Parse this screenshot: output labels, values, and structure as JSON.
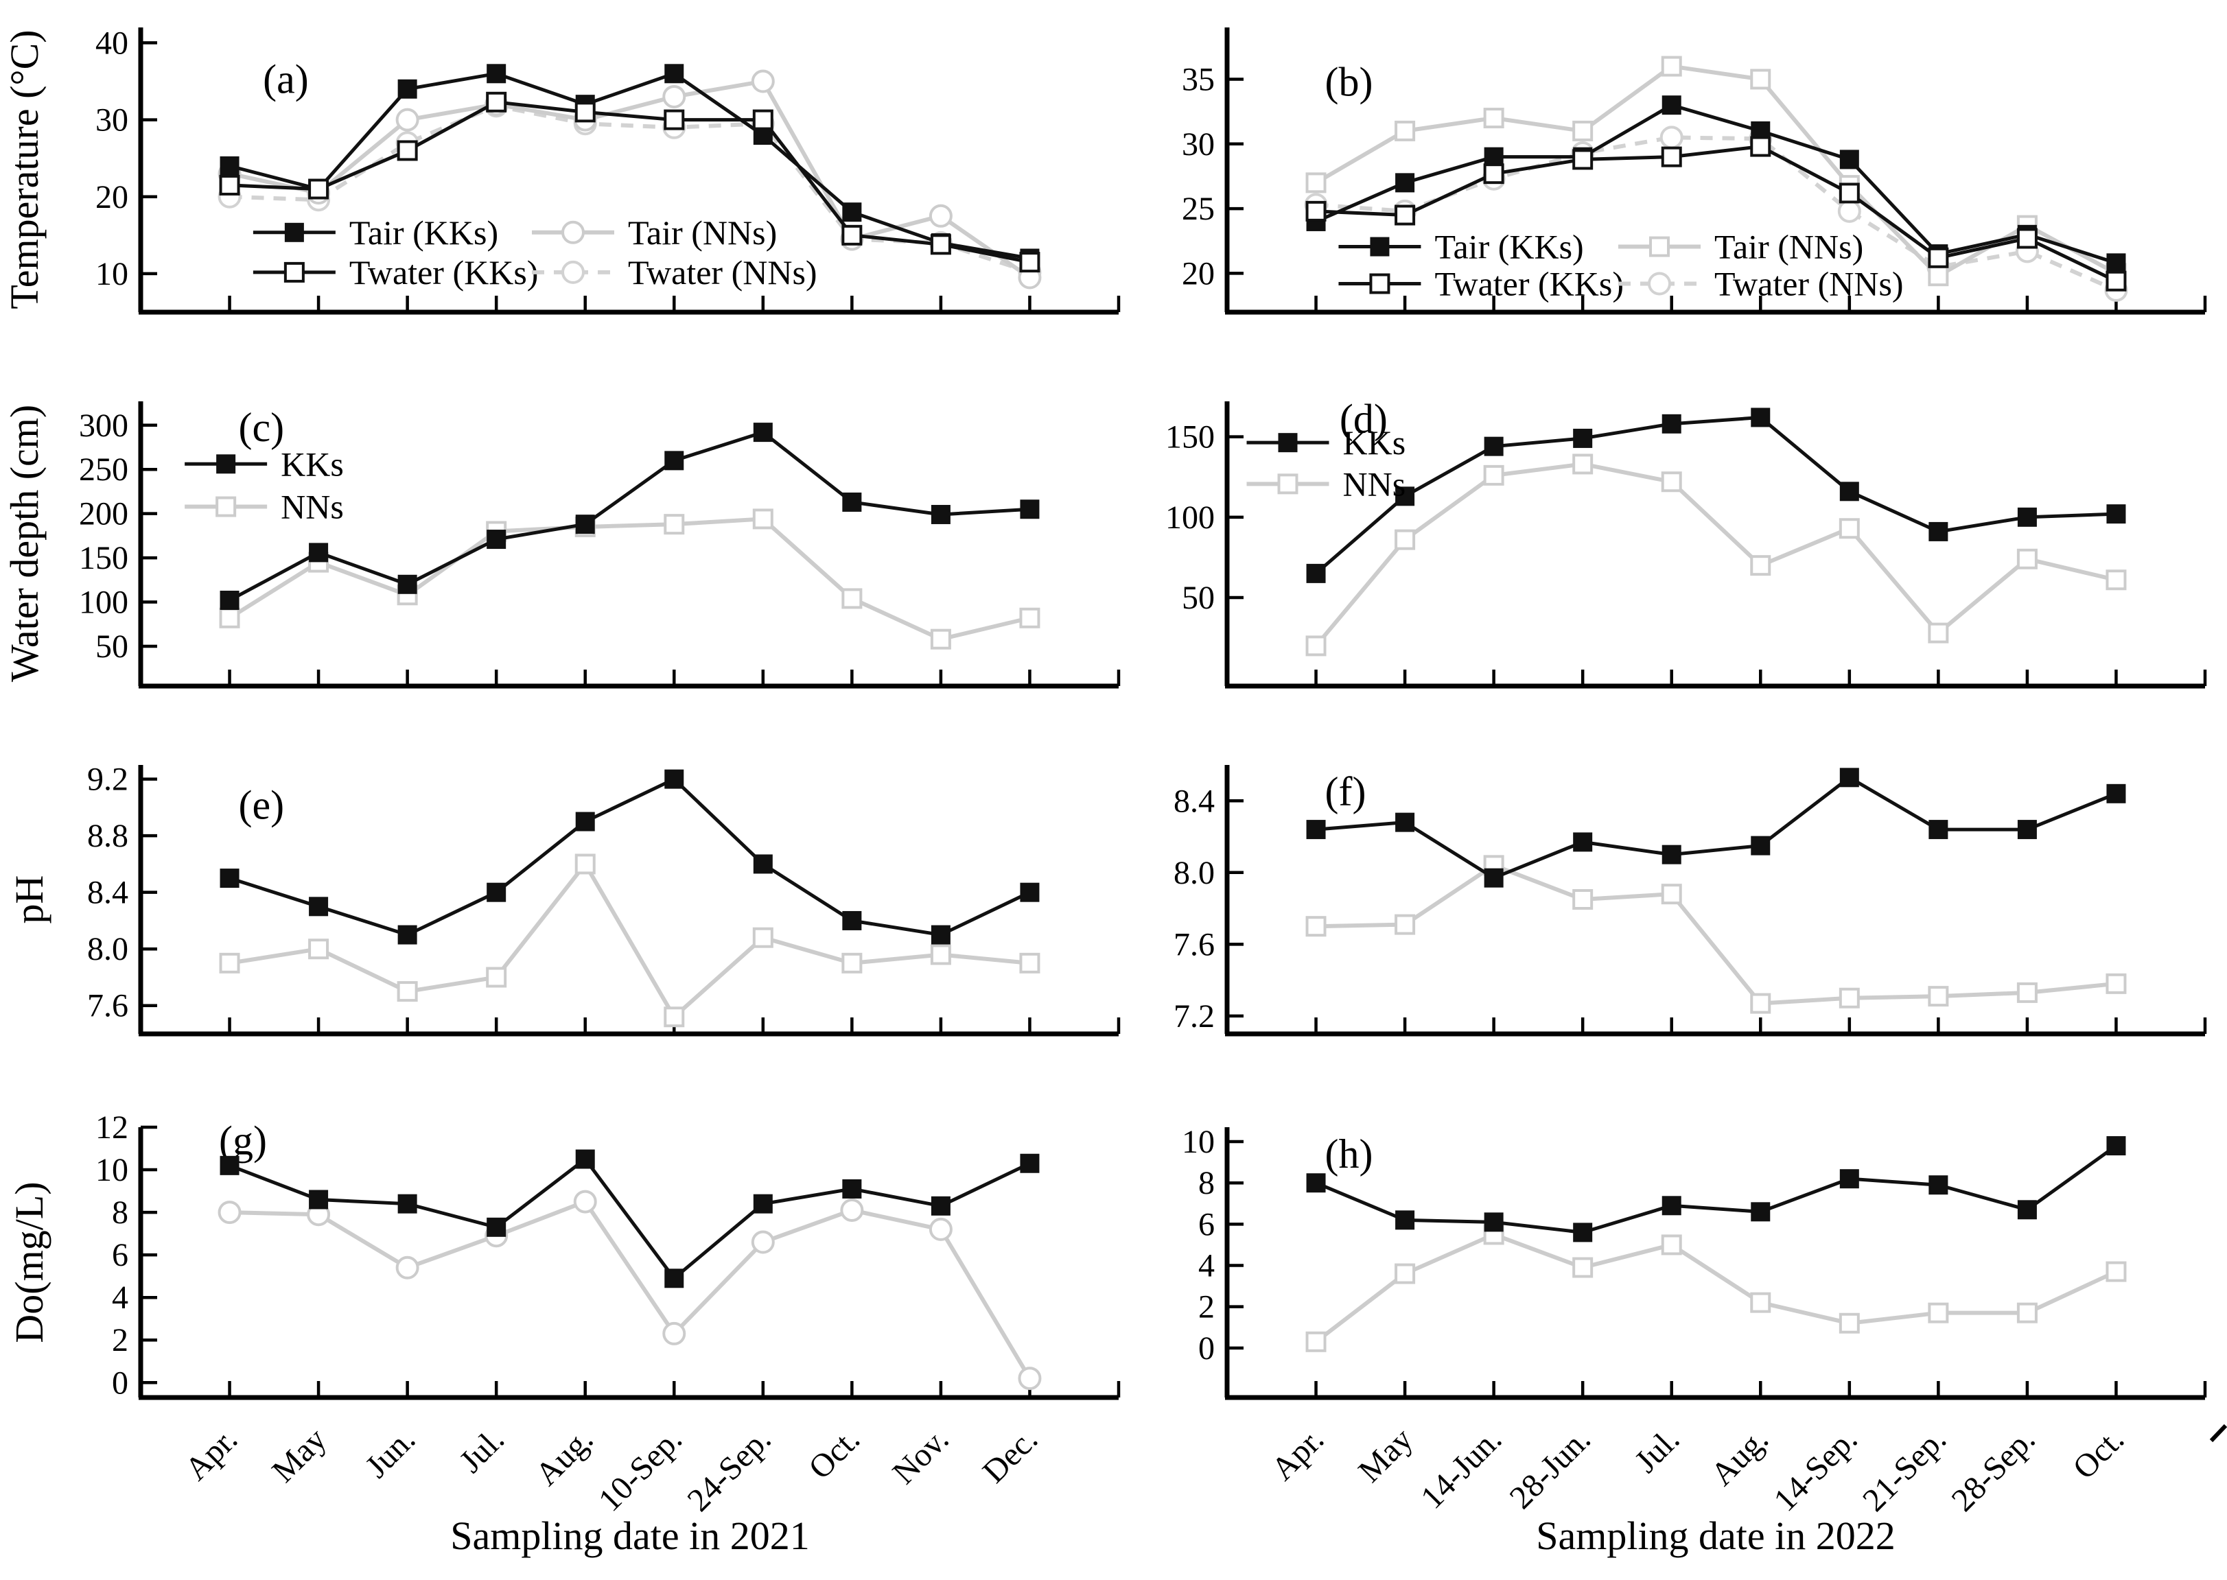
{
  "figure": {
    "description": "Eight-panel line figure comparing sites KKs and NNs",
    "accent_black": "#111111",
    "accent_gray": "#cccccc"
  },
  "chart_data": [
    {
      "id": "a",
      "type": "line",
      "row": 0,
      "col": 0,
      "panel_label": "(a)",
      "label_pos": [
        0.125,
        0.23
      ],
      "ylabel": "Temperature (°C)",
      "categories": [
        "Apr.",
        "May",
        "Jun.",
        "Jul.",
        "Aug.",
        "10-Sep.",
        "24-Sep.",
        "Oct.",
        "Nov.",
        "Dec."
      ],
      "yticks": [
        "10",
        "20",
        "30",
        "40"
      ],
      "ylim": [
        5,
        42
      ],
      "show_x_labels": false,
      "legend": {
        "layout": "grid",
        "x": 0.115,
        "y": 0.72,
        "col2x": 0.4,
        "row2y": 0.86
      },
      "series": [
        {
          "name": "Tair (KKs)",
          "color": "#111111",
          "line": "solid",
          "marker": "filled-square",
          "values": [
            24,
            21,
            34,
            36,
            32,
            36,
            28,
            18,
            14,
            12
          ]
        },
        {
          "name": "Tair (NNs)",
          "color": "#cccccc",
          "line": "solid",
          "marker": "open-circle",
          "values": [
            23,
            20.5,
            30,
            32,
            30,
            33,
            35,
            14.5,
            17.5,
            9.5
          ]
        },
        {
          "name": "Twater (KKs)",
          "color": "#111111",
          "line": "solid",
          "marker": "open-square",
          "values": [
            21.5,
            21,
            26,
            32.3,
            31,
            30,
            30,
            15,
            13.8,
            11.5
          ]
        },
        {
          "name": "Twater (NNs)",
          "color": "#d2d2d2",
          "line": "dashed",
          "marker": "open-circle",
          "values": [
            20,
            19.6,
            27,
            31.8,
            29.5,
            29,
            29.5,
            14.5,
            14,
            10.2
          ]
        }
      ]
    },
    {
      "id": "b",
      "type": "line",
      "row": 0,
      "col": 1,
      "panel_label": "(b)",
      "label_pos": [
        0.1,
        0.24
      ],
      "categories": [
        "Apr.",
        "May",
        "14-Jun.",
        "28-Jun.",
        "Jul.",
        "Aug.",
        "14-Sep.",
        "21-Sep.",
        "28-Sep.",
        "Oct."
      ],
      "yticks": [
        "20",
        "25",
        "30",
        "35"
      ],
      "ylim": [
        17,
        39
      ],
      "show_x_labels": false,
      "legend": {
        "layout": "grid",
        "x": 0.114,
        "y": 0.77,
        "col2x": 0.4,
        "row2y": 0.9
      },
      "series": [
        {
          "name": "Tair (KKs)",
          "color": "#111111",
          "line": "solid",
          "marker": "filled-square",
          "values": [
            24,
            27,
            29,
            29,
            33,
            31,
            28.8,
            21.5,
            23,
            20.8
          ]
        },
        {
          "name": "Tair (NNs)",
          "color": "#cccccc",
          "line": "solid",
          "marker": "open-square",
          "values": [
            27,
            31,
            32,
            31,
            36,
            35,
            26.8,
            19.8,
            23.7,
            20
          ]
        },
        {
          "name": "Twater (KKs)",
          "color": "#111111",
          "line": "solid",
          "marker": "open-square",
          "values": [
            24.8,
            24.5,
            27.7,
            28.8,
            29,
            29.8,
            26.2,
            21.2,
            22.7,
            19.4
          ]
        },
        {
          "name": "Twater (NNs)",
          "color": "#d2d2d2",
          "line": "dashed",
          "marker": "open-circle",
          "values": [
            25.3,
            24.8,
            27.3,
            29.3,
            30.5,
            30.4,
            24.8,
            20.5,
            21.7,
            18.7
          ]
        }
      ]
    },
    {
      "id": "c",
      "type": "line",
      "row": 1,
      "col": 0,
      "panel_label": "(c)",
      "label_pos": [
        0.1,
        0.14
      ],
      "ylabel": "Water depth (cm)",
      "categories": [
        "Apr.",
        "May",
        "Jun.",
        "Jul.",
        "Aug.",
        "10-Sep.",
        "24-Sep.",
        "Oct.",
        "Nov.",
        "Dec."
      ],
      "yticks": [
        "50",
        "100",
        "150",
        "200",
        "250",
        "300"
      ],
      "ylim": [
        5,
        327
      ],
      "show_x_labels": false,
      "legend": {
        "layout": "stacked",
        "x": 0.045,
        "y": 0.22,
        "row2y": 0.37
      },
      "series": [
        {
          "name": "KKs",
          "color": "#111111",
          "line": "solid",
          "marker": "filled-square",
          "values": [
            102,
            156,
            120,
            171,
            188,
            260,
            292,
            213,
            199,
            205
          ]
        },
        {
          "name": "NNs",
          "color": "#cccccc",
          "line": "solid",
          "marker": "open-square",
          "values": [
            82,
            145,
            108,
            180,
            185,
            188,
            194,
            104,
            58,
            82
          ]
        }
      ]
    },
    {
      "id": "d",
      "type": "line",
      "row": 1,
      "col": 1,
      "panel_label": "(d)",
      "label_pos": [
        0.115,
        0.11
      ],
      "categories": [
        "Apr.",
        "May",
        "14-Jun.",
        "28-Jun.",
        "Jul.",
        "Aug.",
        "14-Sep.",
        "21-Sep.",
        "28-Sep.",
        "Oct."
      ],
      "yticks": [
        "50",
        "100",
        "150"
      ],
      "ylim": [
        -5,
        172
      ],
      "show_x_labels": false,
      "legend": {
        "layout": "stacked",
        "x": 0.02,
        "y": 0.145,
        "row2y": 0.29
      },
      "series": [
        {
          "name": "KKs",
          "color": "#111111",
          "line": "solid",
          "marker": "filled-square",
          "values": [
            65,
            113,
            144,
            149,
            158,
            162,
            116,
            91,
            100,
            102
          ]
        },
        {
          "name": "NNs",
          "color": "#cccccc",
          "line": "solid",
          "marker": "open-square",
          "values": [
            20,
            86,
            126,
            133,
            122,
            70,
            93,
            28,
            74,
            61
          ]
        }
      ]
    },
    {
      "id": "e",
      "type": "line",
      "row": 2,
      "col": 0,
      "panel_label": "(e)",
      "label_pos": [
        0.1,
        0.2
      ],
      "ylabel": "pH",
      "categories": [
        "Apr.",
        "May",
        "Jun.",
        "Jul.",
        "Aug.",
        "10-Sep.",
        "24-Sep.",
        "Oct.",
        "Nov.",
        "Dec."
      ],
      "yticks": [
        "7.6",
        "8.0",
        "8.4",
        "8.8",
        "9.2"
      ],
      "ylim": [
        7.4,
        9.3
      ],
      "show_x_labels": false,
      "legend": null,
      "series": [
        {
          "name": "KKs",
          "color": "#111111",
          "line": "solid",
          "marker": "filled-square",
          "values": [
            8.5,
            8.3,
            8.1,
            8.4,
            8.9,
            9.2,
            8.6,
            8.2,
            8.1,
            8.4
          ]
        },
        {
          "name": "NNs",
          "color": "#cccccc",
          "line": "solid",
          "marker": "open-square",
          "values": [
            7.9,
            8.0,
            7.7,
            7.8,
            8.6,
            7.52,
            8.08,
            7.9,
            7.96,
            7.9
          ]
        }
      ]
    },
    {
      "id": "f",
      "type": "line",
      "row": 2,
      "col": 1,
      "panel_label": "(f)",
      "label_pos": [
        0.1,
        0.15
      ],
      "categories": [
        "Apr.",
        "May",
        "14-Jun.",
        "28-Jun.",
        "Jul.",
        "Aug.",
        "14-Sep.",
        "21-Sep.",
        "28-Sep.",
        "Oct."
      ],
      "yticks": [
        "7.2",
        "7.6",
        "8.0",
        "8.4"
      ],
      "ylim": [
        7.1,
        8.6
      ],
      "show_x_labels": false,
      "legend": null,
      "series": [
        {
          "name": "KKs",
          "color": "#111111",
          "line": "solid",
          "marker": "filled-square",
          "values": [
            8.24,
            8.28,
            7.97,
            8.17,
            8.1,
            8.15,
            8.53,
            8.24,
            8.24,
            8.44
          ]
        },
        {
          "name": "NNs",
          "color": "#cccccc",
          "line": "solid",
          "marker": "open-square",
          "values": [
            7.7,
            7.71,
            8.04,
            7.85,
            7.88,
            7.27,
            7.3,
            7.31,
            7.33,
            7.38
          ]
        }
      ]
    },
    {
      "id": "g",
      "type": "line",
      "row": 3,
      "col": 0,
      "panel_label": "(g)",
      "label_pos": [
        0.08,
        0.1
      ],
      "ylabel": "Do(mg/L)",
      "xlabel": "Sampling date in 2021",
      "categories": [
        "Apr.",
        "May",
        "Jun.",
        "Jul.",
        "Aug.",
        "10-Sep.",
        "24-Sep.",
        "Oct.",
        "Nov.",
        "Dec."
      ],
      "yticks": [
        "0",
        "2",
        "4",
        "6",
        "8",
        "10",
        "12"
      ],
      "ylim": [
        -0.7,
        12
      ],
      "show_x_labels": true,
      "legend": null,
      "series": [
        {
          "name": "KKs",
          "color": "#111111",
          "line": "solid",
          "marker": "filled-square",
          "values": [
            10.2,
            8.6,
            8.4,
            7.3,
            10.5,
            4.9,
            8.4,
            9.1,
            8.3,
            10.3
          ]
        },
        {
          "name": "NNs",
          "color": "#cccccc",
          "line": "solid",
          "marker": "open-circle",
          "values": [
            8.0,
            7.9,
            5.4,
            6.9,
            8.5,
            2.3,
            6.6,
            8.1,
            7.2,
            0.2
          ]
        }
      ]
    },
    {
      "id": "h",
      "type": "line",
      "row": 3,
      "col": 1,
      "panel_label": "(h)",
      "label_pos": [
        0.1,
        0.15
      ],
      "xlabel": "Sampling date in 2022",
      "categories": [
        "Apr.",
        "May",
        "14-Jun.",
        "28-Jun.",
        "Jul.",
        "Aug.",
        "14-Sep.",
        "21-Sep.",
        "28-Sep.",
        "Oct."
      ],
      "yticks": [
        "0",
        "2",
        "4",
        "6",
        "8",
        "10"
      ],
      "ylim": [
        -2.4,
        10.7
      ],
      "show_x_labels": true,
      "legend": null,
      "series": [
        {
          "name": "KKs",
          "color": "#111111",
          "line": "solid",
          "marker": "filled-square",
          "values": [
            8.0,
            6.2,
            6.1,
            5.6,
            6.9,
            6.6,
            8.2,
            7.9,
            6.7,
            9.8
          ]
        },
        {
          "name": "NNs",
          "color": "#cccccc",
          "line": "solid",
          "marker": "open-square",
          "values": [
            0.3,
            3.6,
            5.5,
            3.9,
            5.0,
            2.2,
            1.2,
            1.7,
            1.7,
            3.7
          ]
        }
      ]
    }
  ]
}
